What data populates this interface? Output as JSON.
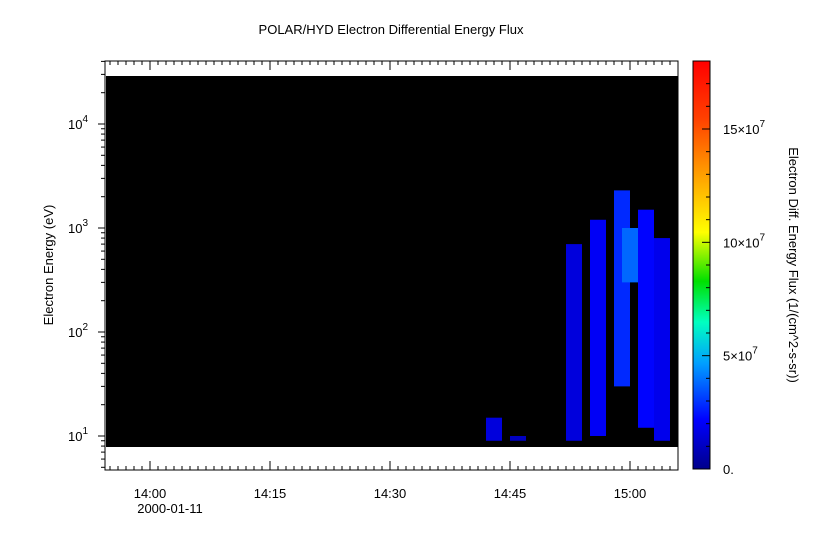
{
  "chart_data": {
    "type": "heatmap",
    "title": "POLAR/HYD  Electron Differential Energy Flux",
    "xlabel": "",
    "ylabel": "Electron Energy (eV)",
    "y_scale": "log",
    "x_tick_labels": [
      "14:00",
      "14:15",
      "14:30",
      "14:45",
      "15:00"
    ],
    "x_date_label": "2000-01-11",
    "y_tick_labels": [
      {
        "base": "10",
        "exp": "1"
      },
      {
        "base": "10",
        "exp": "2"
      },
      {
        "base": "10",
        "exp": "3"
      },
      {
        "base": "10",
        "exp": "4"
      }
    ],
    "colorbar": {
      "label": "Electron Diff. Energy Flux (1/(cm^2-s-sr))",
      "tick_labels": [
        {
          "text": "0.",
          "value": 0
        },
        {
          "text": "5×10",
          "exp": "7",
          "value": 50000000
        },
        {
          "text": "10×10",
          "exp": "7",
          "value": 100000000
        },
        {
          "text": "15×10",
          "exp": "7",
          "value": 150000000
        }
      ],
      "range": [
        0,
        180000000
      ]
    },
    "background_color": "#000000",
    "data_range_energy": [
      8,
      28000
    ],
    "flux_features": [
      {
        "time": "14:43",
        "energy_range": [
          9,
          15
        ],
        "flux": 15000000
      },
      {
        "time": "14:46",
        "energy_range": [
          9,
          10
        ],
        "flux": 10000000
      },
      {
        "time": "14:53",
        "energy_range": [
          9,
          700
        ],
        "flux": 15000000
      },
      {
        "time": "14:56",
        "energy_range": [
          10,
          1200
        ],
        "flux": 20000000
      },
      {
        "time": "14:59",
        "energy_range": [
          30,
          2300
        ],
        "flux": 28000000
      },
      {
        "time": "15:00",
        "energy_range": [
          300,
          1000
        ],
        "flux": 38000000
      },
      {
        "time": "15:02",
        "energy_range": [
          12,
          1500
        ],
        "flux": 22000000
      },
      {
        "time": "15:04",
        "energy_range": [
          9,
          800
        ],
        "flux": 18000000
      }
    ]
  }
}
